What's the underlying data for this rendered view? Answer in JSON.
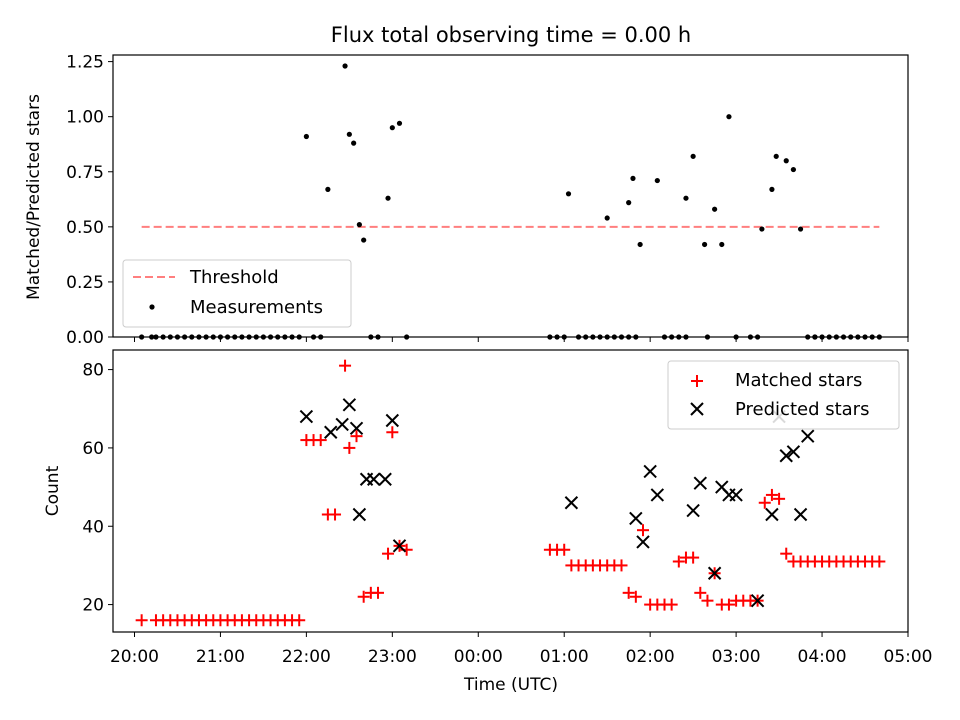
{
  "chart_data": [
    {
      "type": "scatter",
      "title": "Flux total observing time = 0.00 h",
      "xlabel": "",
      "ylabel": "Matched/Predicted stars",
      "xlim": [
        "19:45",
        "05:00"
      ],
      "ylim": [
        0,
        1.28
      ],
      "yticks": [
        "0.00",
        "0.25",
        "0.50",
        "0.75",
        "1.00",
        "1.25"
      ],
      "threshold": {
        "name": "Threshold",
        "value": 0.5,
        "x_range": [
          "20:05",
          "04:40"
        ],
        "color": "#ff7f7f",
        "style": "dashed"
      },
      "series": [
        {
          "name": "Measurements",
          "color": "#000000",
          "x": [
            "22:00",
            "22:15",
            "22:27",
            "22:30",
            "22:33",
            "22:37",
            "22:40",
            "22:45",
            "22:57",
            "23:00",
            "23:05",
            "01:03",
            "01:30",
            "01:45",
            "01:48",
            "01:53",
            "02:05",
            "02:25",
            "02:30",
            "02:38",
            "02:45",
            "02:50",
            "02:55",
            "03:18",
            "03:25",
            "03:28",
            "03:35",
            "03:40",
            "03:45",
            "03:50",
            "03:55",
            "20:05",
            "20:12",
            "20:15",
            "20:20",
            "20:25",
            "20:30",
            "20:35",
            "20:40",
            "20:45",
            "20:50",
            "20:55",
            "21:00",
            "21:05",
            "21:10",
            "21:15",
            "21:20",
            "21:25",
            "21:30",
            "21:35",
            "21:40",
            "21:45",
            "21:50",
            "21:55",
            "22:05",
            "22:10",
            "22:50",
            "23:10",
            "00:50",
            "00:55",
            "01:00",
            "01:10",
            "01:15",
            "01:20",
            "01:25",
            "01:30",
            "01:35",
            "01:40",
            "01:45",
            "01:50",
            "02:10",
            "02:15",
            "02:20",
            "02:25",
            "02:40",
            "03:00",
            "03:10",
            "03:15",
            "03:55",
            "04:00",
            "04:05",
            "04:10",
            "04:15",
            "04:20",
            "04:25",
            "04:30",
            "04:35",
            "04:40"
          ],
          "y": [
            0.91,
            0.67,
            1.23,
            0.92,
            0.88,
            0.51,
            0.44,
            0.0,
            0.63,
            0.95,
            0.97,
            0.65,
            0.54,
            0.61,
            0.72,
            0.42,
            0.71,
            0.63,
            0.82,
            0.42,
            0.58,
            0.42,
            1.0,
            0.49,
            0.67,
            0.82,
            0.8,
            0.76,
            0.49,
            0.0,
            0.0,
            0,
            0,
            0,
            0,
            0,
            0,
            0,
            0,
            0,
            0,
            0,
            0,
            0,
            0,
            0,
            0,
            0,
            0,
            0,
            0,
            0,
            0,
            0,
            0,
            0,
            0,
            0,
            0,
            0,
            0,
            0,
            0,
            0,
            0,
            0,
            0,
            0,
            0,
            0,
            0,
            0,
            0,
            0,
            0,
            0,
            0,
            0,
            0,
            0,
            0,
            0,
            0,
            0,
            0,
            0,
            0,
            0
          ]
        }
      ],
      "legend": "lower-left"
    },
    {
      "type": "scatter",
      "title": "",
      "xlabel": "Time (UTC)",
      "ylabel": "Count",
      "xlim": [
        "19:45",
        "05:00"
      ],
      "ylim": [
        13,
        85
      ],
      "yticks": [
        "20",
        "40",
        "60",
        "80"
      ],
      "xticks": [
        "20:00",
        "21:00",
        "22:00",
        "23:00",
        "00:00",
        "01:00",
        "02:00",
        "03:00",
        "04:00",
        "05:00"
      ],
      "series": [
        {
          "name": "Matched stars",
          "color": "#ff0000",
          "marker": "+",
          "x": [
            "20:05",
            "20:15",
            "20:20",
            "20:25",
            "20:30",
            "20:35",
            "20:40",
            "20:45",
            "20:50",
            "20:55",
            "21:00",
            "21:05",
            "21:10",
            "21:15",
            "21:20",
            "21:25",
            "21:30",
            "21:35",
            "21:40",
            "21:45",
            "21:50",
            "21:55",
            "22:00",
            "22:05",
            "22:10",
            "22:15",
            "22:20",
            "22:27",
            "22:30",
            "22:35",
            "22:40",
            "22:45",
            "22:50",
            "22:57",
            "23:00",
            "23:05",
            "23:10",
            "00:50",
            "00:55",
            "01:00",
            "01:05",
            "01:10",
            "01:15",
            "01:20",
            "01:25",
            "01:30",
            "01:35",
            "01:40",
            "01:45",
            "01:50",
            "01:55",
            "02:00",
            "02:05",
            "02:10",
            "02:15",
            "02:20",
            "02:25",
            "02:30",
            "02:35",
            "02:40",
            "02:45",
            "02:50",
            "02:55",
            "03:00",
            "03:05",
            "03:10",
            "03:15",
            "03:20",
            "03:25",
            "03:30",
            "03:35",
            "03:40",
            "03:45",
            "03:50",
            "03:55",
            "04:00",
            "04:05",
            "04:10",
            "04:15",
            "04:20",
            "04:25",
            "04:30",
            "04:35",
            "04:40"
          ],
          "y": [
            16,
            16,
            16,
            16,
            16,
            16,
            16,
            16,
            16,
            16,
            16,
            16,
            16,
            16,
            16,
            16,
            16,
            16,
            16,
            16,
            16,
            16,
            62,
            62,
            62,
            43,
            43,
            81,
            60,
            63,
            22,
            23,
            23,
            33,
            64,
            35,
            34,
            34,
            34,
            34,
            30,
            30,
            30,
            30,
            30,
            30,
            30,
            30,
            23,
            22,
            39,
            20,
            20,
            20,
            20,
            31,
            32,
            32,
            23,
            21,
            28,
            20,
            20,
            21,
            21,
            21,
            21,
            46,
            48,
            47,
            33,
            31,
            31,
            31,
            31,
            31,
            31,
            31,
            31,
            31,
            31,
            31,
            31,
            31
          ]
        },
        {
          "name": "Predicted stars",
          "color": "#000000",
          "marker": "x",
          "x": [
            "22:00",
            "22:17",
            "22:25",
            "22:30",
            "22:35",
            "22:37",
            "22:42",
            "22:47",
            "22:55",
            "23:00",
            "23:05",
            "01:05",
            "01:50",
            "01:55",
            "02:00",
            "02:05",
            "02:30",
            "02:35",
            "02:45",
            "02:50",
            "02:55",
            "03:00",
            "03:15",
            "03:25",
            "03:30",
            "03:35",
            "03:40",
            "03:45",
            "03:50"
          ],
          "y": [
            68,
            64,
            66,
            71,
            65,
            43,
            52,
            52,
            52,
            67,
            35,
            46,
            42,
            36,
            54,
            48,
            44,
            51,
            28,
            50,
            48,
            48,
            21,
            43,
            68,
            58,
            59,
            43,
            63
          ]
        }
      ],
      "legend": "top-right"
    }
  ]
}
